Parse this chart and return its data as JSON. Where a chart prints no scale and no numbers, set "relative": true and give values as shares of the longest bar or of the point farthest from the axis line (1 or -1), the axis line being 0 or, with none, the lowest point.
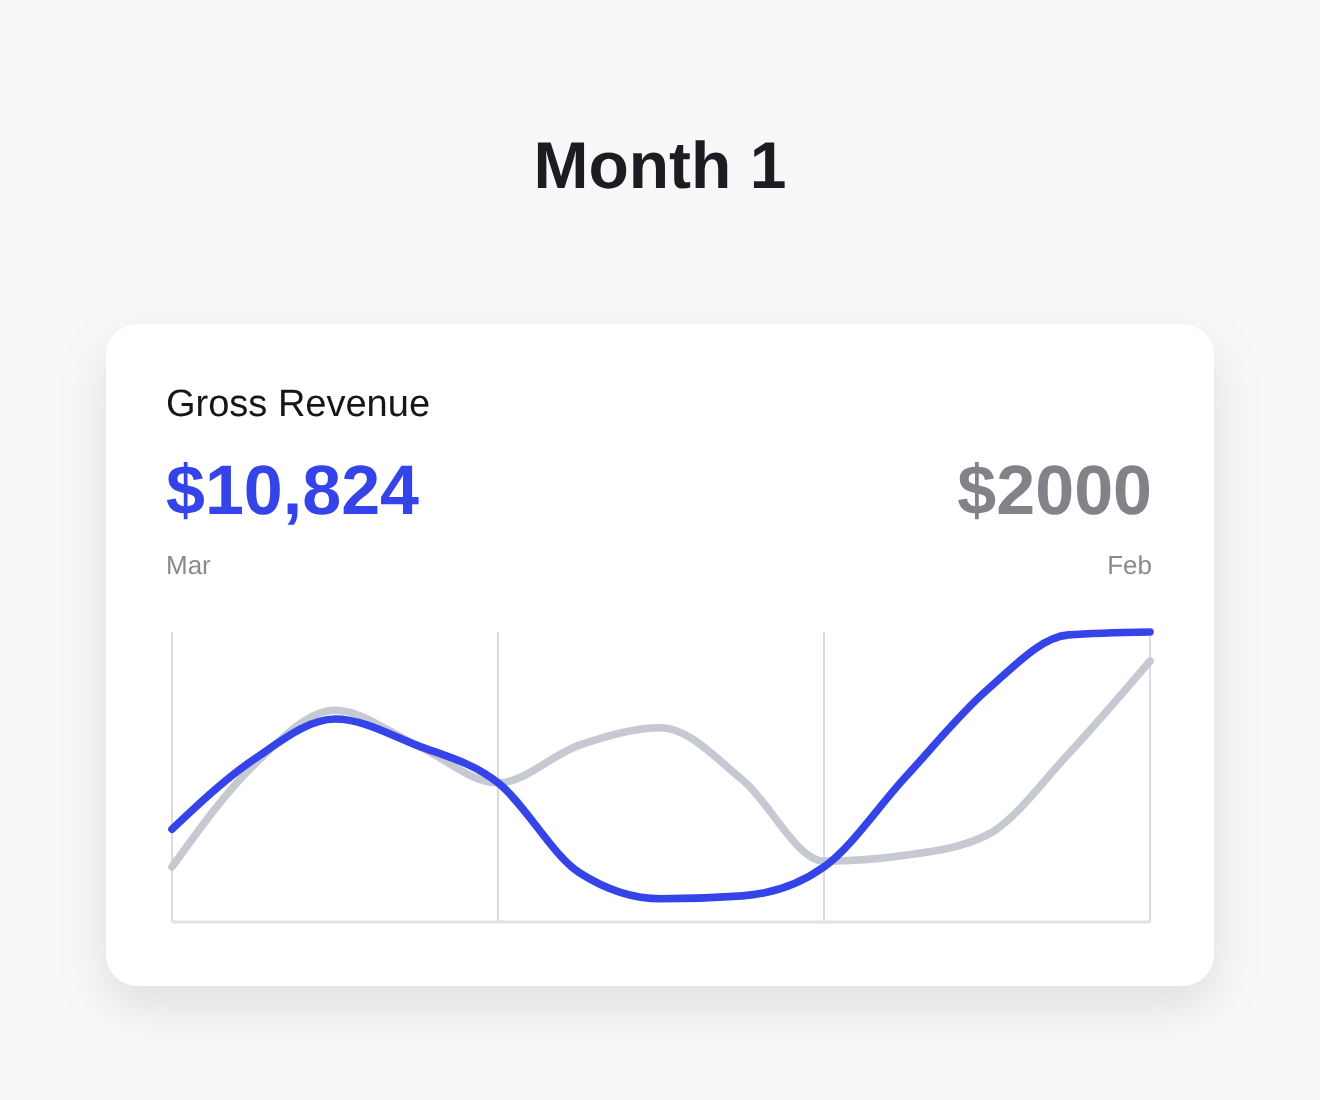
{
  "chart_data": {
    "type": "line",
    "title": "Month 1",
    "subtitle": "Gross Revenue",
    "annotations": [
      "$10,824",
      "$2000",
      "Mar",
      "Feb"
    ],
    "relative": true,
    "categories": [
      null,
      null,
      null,
      null,
      null,
      null,
      null,
      null,
      null,
      null,
      null,
      null,
      null
    ],
    "grid": "x",
    "series": [
      {
        "color": "#3544e8",
        "values": [
          0.32,
          0.56,
          0.7,
          0.61,
          0.48,
          0.17,
          0.08,
          0.09,
          0.19,
          0.5,
          0.8,
          0.99,
          1
        ]
      },
      {
        "color": "#c6c9d1",
        "values": [
          0.19,
          0.54,
          0.73,
          0.61,
          0.48,
          0.61,
          0.67,
          0.49,
          0.21,
          0.23,
          0.3,
          0.58,
          0.9
        ]
      }
    ]
  }
}
